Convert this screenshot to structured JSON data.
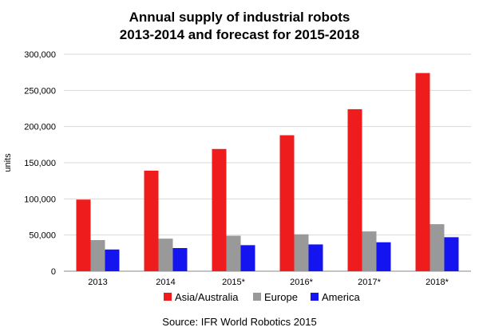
{
  "chart_data": {
    "type": "bar",
    "title_lines": [
      "Annual supply of industrial robots",
      "2013-2014 and forecast for 2015-2018"
    ],
    "ylabel": "units",
    "xlabel": "",
    "categories": [
      "2013",
      "2014",
      "2015*",
      "2016*",
      "2017*",
      "2018*"
    ],
    "series": [
      {
        "name": "Asia/Australia",
        "color": "#ee1c1c",
        "values": [
          99000,
          139000,
          169000,
          188000,
          224000,
          274000
        ]
      },
      {
        "name": "Europe",
        "color": "#999999",
        "values": [
          43000,
          45000,
          49000,
          51000,
          55000,
          65000
        ]
      },
      {
        "name": "America",
        "color": "#1414f0",
        "values": [
          30000,
          32000,
          36000,
          37000,
          40000,
          47000
        ]
      }
    ],
    "ylim": [
      0,
      300000
    ],
    "yticks": [
      0,
      50000,
      100000,
      150000,
      200000,
      250000,
      300000
    ],
    "ytick_labels": [
      "0",
      "50,000",
      "100,000",
      "150,000",
      "200,000",
      "250,000",
      "300,000"
    ],
    "grid": true,
    "legend": "bottom",
    "source": "Source: IFR World Robotics 2015"
  }
}
